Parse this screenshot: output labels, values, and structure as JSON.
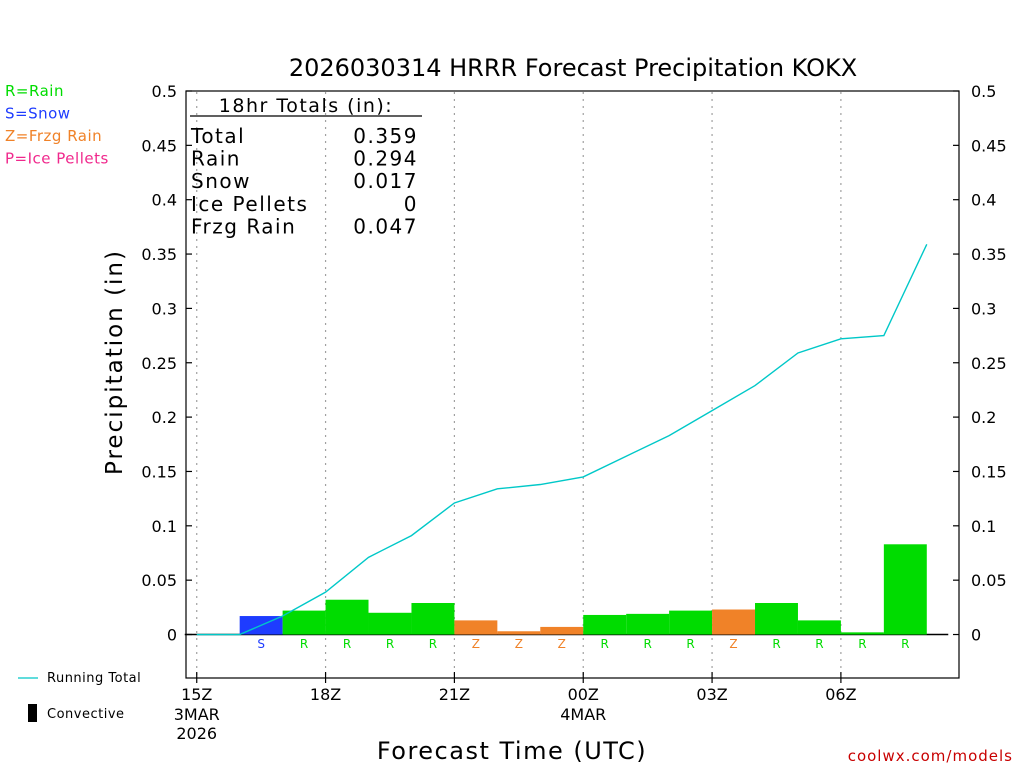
{
  "chart_data": {
    "type": "bar",
    "title": "2026030314 HRRR Forecast Precipitation KOKX",
    "xlabel": "Forecast Time (UTC)",
    "ylabel": "Precipitation (in)",
    "ylim": [
      -0.04,
      0.5
    ],
    "yticks": [
      0,
      0.05,
      0.1,
      0.15,
      0.2,
      0.25,
      0.3,
      0.35,
      0.4,
      0.45,
      0.5
    ],
    "ytick_labels": [
      "0",
      "0.05",
      "0.1",
      "0.15",
      "0.2",
      "0.25",
      "0.3",
      "0.35",
      "0.4",
      "0.45",
      "0.5"
    ],
    "xlim": [
      14.75,
      32.75
    ],
    "xticks": [
      {
        "x": 15,
        "label": "15Z",
        "sub": [
          "3MAR",
          "2026"
        ]
      },
      {
        "x": 18,
        "label": "18Z",
        "sub": []
      },
      {
        "x": 21,
        "label": "21Z",
        "sub": []
      },
      {
        "x": 24,
        "label": "00Z",
        "sub": [
          "4MAR"
        ]
      },
      {
        "x": 27,
        "label": "03Z",
        "sub": []
      },
      {
        "x": 30,
        "label": "06Z",
        "sub": []
      }
    ],
    "grid": true,
    "bars": [
      {
        "hour": 17,
        "value": 0.017,
        "type": "S"
      },
      {
        "hour": 18,
        "value": 0.022,
        "type": "R"
      },
      {
        "hour": 19,
        "value": 0.032,
        "type": "R"
      },
      {
        "hour": 20,
        "value": 0.02,
        "type": "R"
      },
      {
        "hour": 21,
        "value": 0.029,
        "type": "R"
      },
      {
        "hour": 22,
        "value": 0.013,
        "type": "Z"
      },
      {
        "hour": 23,
        "value": 0.003,
        "type": "Z"
      },
      {
        "hour": 24,
        "value": 0.007,
        "type": "Z"
      },
      {
        "hour": 25,
        "value": 0.018,
        "type": "R"
      },
      {
        "hour": 26,
        "value": 0.019,
        "type": "R"
      },
      {
        "hour": 27,
        "value": 0.022,
        "type": "R"
      },
      {
        "hour": 28,
        "value": 0.023,
        "type": "Z"
      },
      {
        "hour": 29,
        "value": 0.029,
        "type": "R"
      },
      {
        "hour": 30,
        "value": 0.013,
        "type": "R"
      },
      {
        "hour": 31,
        "value": 0.002,
        "type": "R"
      },
      {
        "hour": 32,
        "value": 0.083,
        "type": "R"
      }
    ],
    "running_total": {
      "name": "Running Total",
      "x": [
        15,
        16,
        17,
        18,
        19,
        20,
        21,
        22,
        23,
        24,
        25,
        26,
        27,
        28,
        29,
        30,
        31,
        32
      ],
      "y": [
        0,
        0,
        0.017,
        0.039,
        0.071,
        0.091,
        0.121,
        0.134,
        0.138,
        0.145,
        0.164,
        0.183,
        0.206,
        0.229,
        0.259,
        0.272,
        0.275,
        0.359
      ]
    },
    "totals_box": {
      "heading": "18hr Totals (in):",
      "rows": [
        {
          "label": "Total",
          "value": "0.359"
        },
        {
          "label": "Rain",
          "value": "0.294"
        },
        {
          "label": "Snow",
          "value": "0.017"
        },
        {
          "label": "Ice Pellets",
          "value": "0"
        },
        {
          "label": "Frzg Rain",
          "value": "0.047"
        }
      ]
    },
    "type_legend": [
      {
        "code": "R",
        "text": "R=Rain",
        "color": "#00dc00"
      },
      {
        "code": "S",
        "text": "S=Snow",
        "color": "#1e3cff"
      },
      {
        "code": "Z",
        "text": "Z=Frzg Rain",
        "color": "#f08228"
      },
      {
        "code": "P",
        "text": "P=Ice Pellets",
        "color": "#f0288c"
      }
    ],
    "line_legend": "Running Total",
    "convective_legend": "Convective",
    "line_color": "#00c8c8",
    "credit": "coolwx.com/models",
    "credit_color": "#c80000"
  }
}
